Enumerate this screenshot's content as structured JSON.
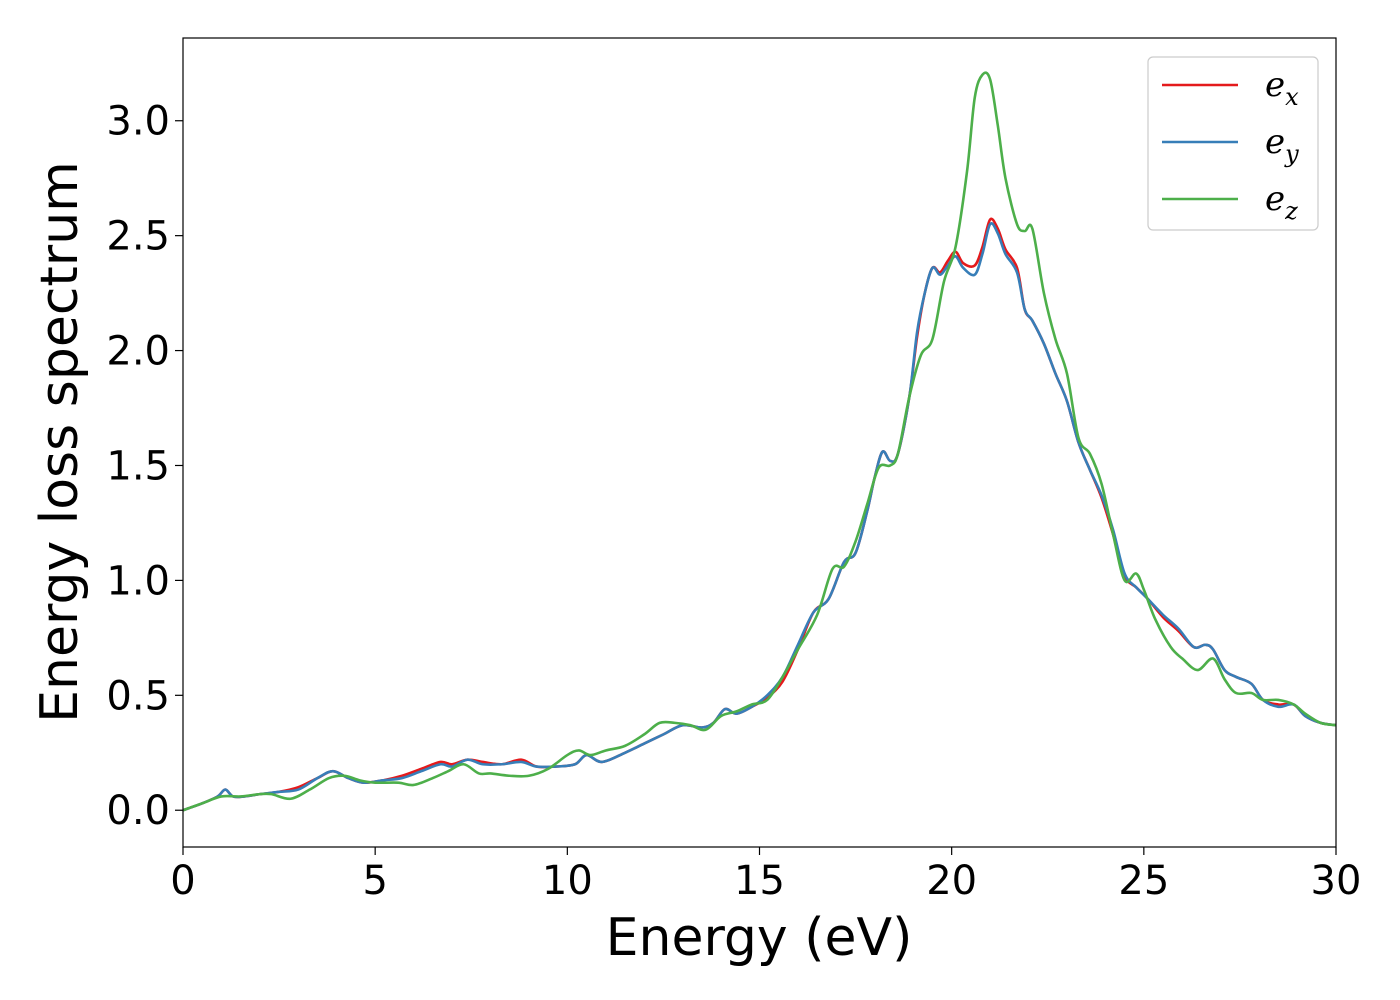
{
  "chart_data": {
    "type": "line",
    "title": "",
    "xlabel": "Energy (eV)",
    "ylabel": "Energy loss spectrum",
    "xlim": [
      0,
      30
    ],
    "ylim": [
      -0.16,
      3.36
    ],
    "xticks": [
      0,
      5,
      10,
      15,
      20,
      25,
      30
    ],
    "xtick_labels": [
      "0",
      "5",
      "10",
      "15",
      "20",
      "25",
      "30"
    ],
    "yticks": [
      0.0,
      0.5,
      1.0,
      1.5,
      2.0,
      2.5,
      3.0
    ],
    "ytick_labels": [
      "0.0",
      "0.5",
      "1.0",
      "1.5",
      "2.0",
      "2.5",
      "3.0"
    ],
    "grid": false,
    "legend_position": "top-right",
    "series": [
      {
        "name": "e_x",
        "label_base": "e",
        "label_sub": "x",
        "color": "#e41a1c",
        "x": [
          0,
          0.5,
          0.9,
          1.1,
          1.3,
          1.6,
          2.0,
          2.5,
          3.0,
          3.5,
          3.9,
          4.3,
          4.7,
          5.2,
          5.7,
          6.2,
          6.7,
          7.0,
          7.4,
          7.8,
          8.3,
          8.8,
          9.2,
          9.7,
          10.2,
          10.5,
          10.9,
          11.5,
          12.0,
          12.5,
          13.0,
          13.5,
          13.8,
          14.1,
          14.4,
          14.8,
          15.2,
          15.6,
          16.0,
          16.4,
          16.8,
          17.2,
          17.5,
          17.8,
          18.0,
          18.2,
          18.4,
          18.6,
          18.9,
          19.1,
          19.3,
          19.5,
          19.7,
          19.9,
          20.1,
          20.3,
          20.6,
          20.8,
          21.0,
          21.2,
          21.4,
          21.7,
          21.9,
          22.1,
          22.4,
          22.7,
          23.0,
          23.3,
          23.6,
          23.9,
          24.2,
          24.5,
          24.8,
          25.1,
          25.5,
          25.9,
          26.3,
          26.6,
          26.8,
          27.1,
          27.4,
          27.8,
          28.1,
          28.5,
          28.9,
          29.2,
          29.6,
          30.0
        ],
        "y": [
          0.0,
          0.03,
          0.06,
          0.09,
          0.06,
          0.06,
          0.07,
          0.08,
          0.1,
          0.14,
          0.17,
          0.14,
          0.12,
          0.13,
          0.15,
          0.18,
          0.21,
          0.2,
          0.22,
          0.21,
          0.2,
          0.22,
          0.19,
          0.19,
          0.2,
          0.24,
          0.21,
          0.25,
          0.29,
          0.33,
          0.37,
          0.36,
          0.38,
          0.44,
          0.42,
          0.45,
          0.49,
          0.56,
          0.7,
          0.86,
          0.92,
          1.08,
          1.12,
          1.3,
          1.45,
          1.56,
          1.52,
          1.55,
          1.8,
          2.06,
          2.25,
          2.36,
          2.34,
          2.39,
          2.43,
          2.38,
          2.37,
          2.45,
          2.57,
          2.53,
          2.44,
          2.36,
          2.18,
          2.13,
          2.03,
          1.9,
          1.78,
          1.6,
          1.48,
          1.36,
          1.2,
          1.02,
          0.97,
          0.92,
          0.84,
          0.78,
          0.71,
          0.72,
          0.7,
          0.61,
          0.58,
          0.55,
          0.48,
          0.46,
          0.46,
          0.41,
          0.38,
          0.37
        ]
      },
      {
        "name": "e_y",
        "label_base": "e",
        "label_sub": "y",
        "color": "#377eb8",
        "x": [
          0,
          0.5,
          0.9,
          1.1,
          1.3,
          1.6,
          2.0,
          2.5,
          3.0,
          3.5,
          3.9,
          4.3,
          4.7,
          5.2,
          5.7,
          6.2,
          6.7,
          7.0,
          7.4,
          7.8,
          8.3,
          8.8,
          9.2,
          9.7,
          10.2,
          10.5,
          10.9,
          11.5,
          12.0,
          12.5,
          13.0,
          13.5,
          13.8,
          14.1,
          14.4,
          14.8,
          15.2,
          15.6,
          16.0,
          16.4,
          16.8,
          17.2,
          17.5,
          17.8,
          18.0,
          18.2,
          18.4,
          18.6,
          18.9,
          19.1,
          19.3,
          19.5,
          19.7,
          19.9,
          20.1,
          20.3,
          20.6,
          20.8,
          21.0,
          21.2,
          21.4,
          21.7,
          21.9,
          22.1,
          22.4,
          22.7,
          23.0,
          23.3,
          23.6,
          23.9,
          24.2,
          24.5,
          24.8,
          25.1,
          25.5,
          25.9,
          26.3,
          26.6,
          26.8,
          27.1,
          27.4,
          27.8,
          28.1,
          28.5,
          28.9,
          29.2,
          29.6,
          30.0
        ],
        "y": [
          0.0,
          0.03,
          0.06,
          0.09,
          0.06,
          0.06,
          0.07,
          0.08,
          0.09,
          0.14,
          0.17,
          0.14,
          0.12,
          0.13,
          0.14,
          0.17,
          0.2,
          0.19,
          0.22,
          0.2,
          0.2,
          0.21,
          0.19,
          0.19,
          0.2,
          0.24,
          0.21,
          0.25,
          0.29,
          0.33,
          0.37,
          0.36,
          0.38,
          0.44,
          0.42,
          0.45,
          0.5,
          0.58,
          0.72,
          0.86,
          0.92,
          1.08,
          1.12,
          1.3,
          1.45,
          1.56,
          1.52,
          1.55,
          1.8,
          2.08,
          2.25,
          2.36,
          2.33,
          2.37,
          2.41,
          2.36,
          2.33,
          2.42,
          2.55,
          2.51,
          2.42,
          2.34,
          2.18,
          2.13,
          2.03,
          1.9,
          1.78,
          1.6,
          1.48,
          1.37,
          1.22,
          1.03,
          0.97,
          0.92,
          0.85,
          0.79,
          0.71,
          0.72,
          0.7,
          0.61,
          0.58,
          0.55,
          0.48,
          0.45,
          0.46,
          0.41,
          0.38,
          0.37
        ]
      },
      {
        "name": "e_z",
        "label_base": "e",
        "label_sub": "z",
        "color": "#4daf4a",
        "x": [
          0,
          0.5,
          1.0,
          1.5,
          2.0,
          2.3,
          2.8,
          3.3,
          3.8,
          4.2,
          4.6,
          5.0,
          5.6,
          6.0,
          6.5,
          6.9,
          7.3,
          7.7,
          8.0,
          8.5,
          9.0,
          9.5,
          10.0,
          10.3,
          10.6,
          11.0,
          11.5,
          12.0,
          12.4,
          12.8,
          13.2,
          13.6,
          14.0,
          14.4,
          14.8,
          15.2,
          15.6,
          16.0,
          16.5,
          16.9,
          17.2,
          17.5,
          17.8,
          18.1,
          18.4,
          18.6,
          18.9,
          19.2,
          19.5,
          19.8,
          20.1,
          20.4,
          20.6,
          20.8,
          21.0,
          21.2,
          21.4,
          21.7,
          21.9,
          22.1,
          22.4,
          22.7,
          23.0,
          23.3,
          23.6,
          23.9,
          24.2,
          24.5,
          24.8,
          25.0,
          25.3,
          25.7,
          26.0,
          26.4,
          26.8,
          27.1,
          27.4,
          27.8,
          28.1,
          28.5,
          28.9,
          29.2,
          29.6,
          30.0
        ],
        "y": [
          0.0,
          0.03,
          0.06,
          0.06,
          0.07,
          0.07,
          0.05,
          0.09,
          0.14,
          0.15,
          0.13,
          0.12,
          0.12,
          0.11,
          0.14,
          0.17,
          0.2,
          0.16,
          0.16,
          0.15,
          0.15,
          0.18,
          0.24,
          0.26,
          0.24,
          0.26,
          0.28,
          0.33,
          0.38,
          0.38,
          0.37,
          0.35,
          0.41,
          0.43,
          0.46,
          0.48,
          0.58,
          0.7,
          0.85,
          1.05,
          1.06,
          1.17,
          1.33,
          1.49,
          1.5,
          1.55,
          1.8,
          1.98,
          2.05,
          2.3,
          2.45,
          2.78,
          3.1,
          3.2,
          3.18,
          2.98,
          2.75,
          2.55,
          2.52,
          2.53,
          2.25,
          2.05,
          1.9,
          1.62,
          1.55,
          1.42,
          1.2,
          1.0,
          1.03,
          0.96,
          0.83,
          0.71,
          0.66,
          0.61,
          0.66,
          0.57,
          0.51,
          0.51,
          0.48,
          0.48,
          0.46,
          0.42,
          0.38,
          0.37
        ]
      }
    ]
  }
}
